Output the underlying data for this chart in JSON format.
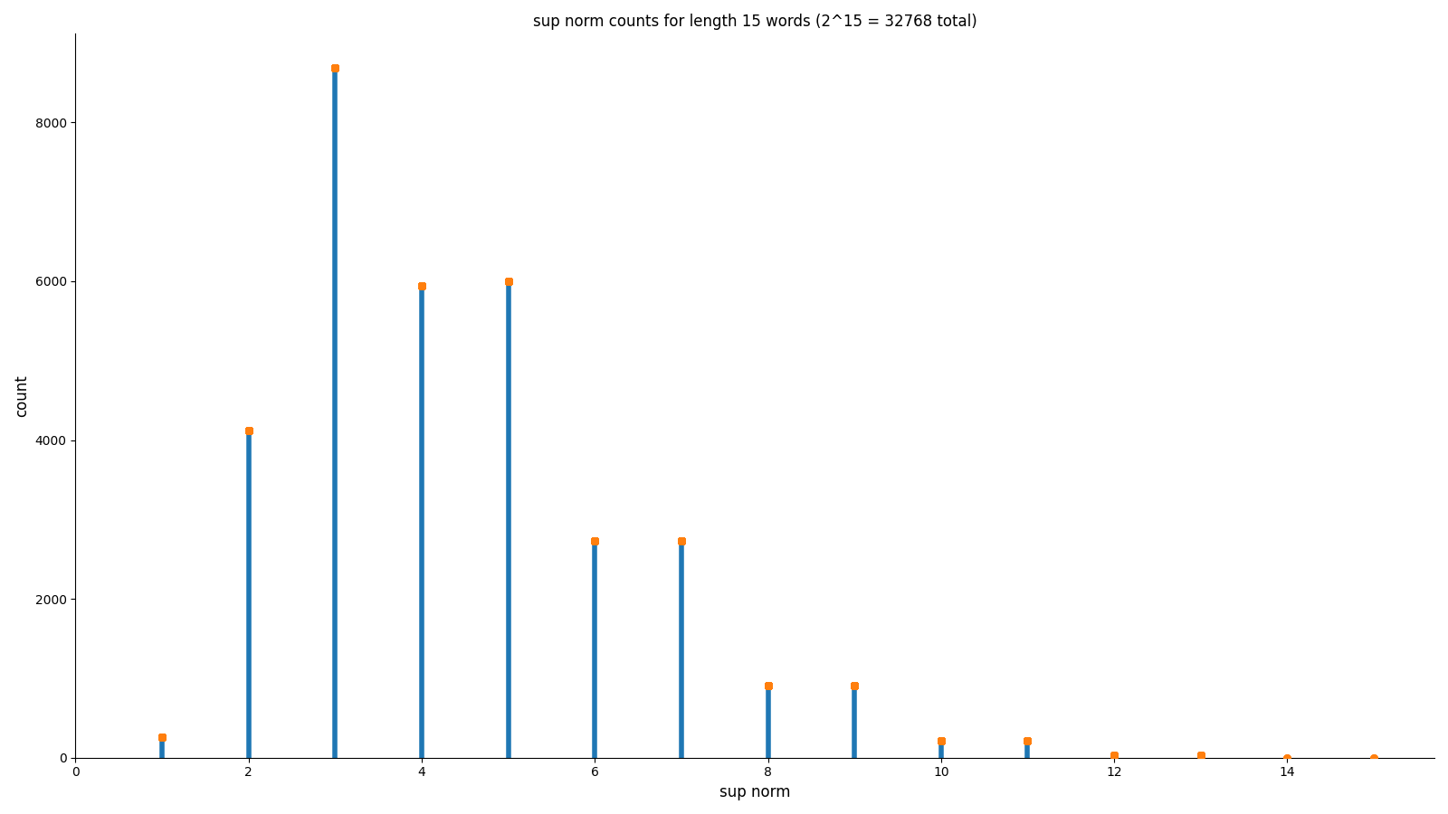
{
  "n": 15,
  "title": "sup norm counts for length 15 words (2^15 = 32768 total)",
  "xlabel": "sup norm",
  "ylabel": "count",
  "bar_color": "#1f77b4",
  "dot_color": "#ff7f0e",
  "dot_size": 30,
  "line_width": 4,
  "figsize": [
    16,
    9
  ],
  "dpi": 100
}
